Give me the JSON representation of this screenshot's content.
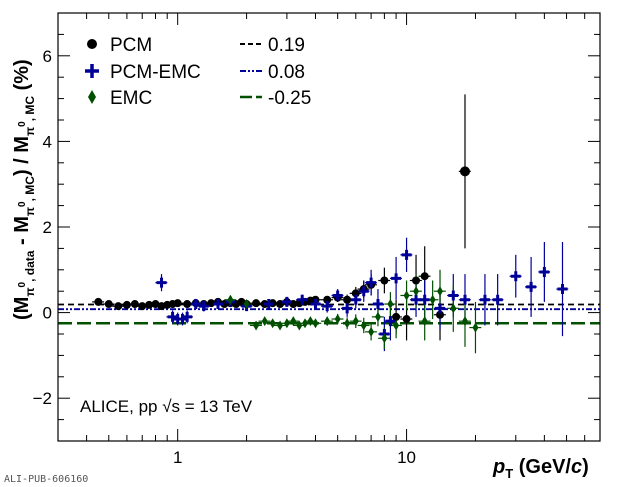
{
  "chart_data": {
    "type": "scatter",
    "x_scale": "log",
    "xlim": [
      0.3,
      70
    ],
    "ylim": [
      -3,
      7
    ],
    "y_ticks": [
      -2,
      0,
      2,
      4,
      6
    ],
    "x_tick_labels": [
      {
        "value": 1,
        "label": "1"
      },
      {
        "value": 10,
        "label": "10"
      }
    ],
    "xlabel": {
      "main": "p",
      "sub": "T",
      "rest": " (GeV/",
      "italic": "c",
      "close": ")"
    },
    "ylabel": {
      "open": "(M",
      "sub1": "π",
      "sup1": "0",
      "sub1b": ", data",
      "minus": " - M",
      "sub2": "π",
      "sup2": "0",
      "sub2b": ", MC",
      "close": ") / M",
      "sub3": "π",
      "sup3": "0",
      "sub3b": ", MC",
      "unit": " (%)"
    },
    "annotation": "ALICE, pp √s = 13 TeV",
    "publication_id": "ALI-PUB-606160",
    "legend_position": "top-left",
    "series": [
      {
        "name": "PCM",
        "color": "#000000",
        "marker": "circle",
        "points": [
          [
            0.45,
            0.25,
            0.03
          ],
          [
            0.5,
            0.2,
            0.03
          ],
          [
            0.55,
            0.15,
            0.03
          ],
          [
            0.6,
            0.18,
            0.03
          ],
          [
            0.65,
            0.2,
            0.03
          ],
          [
            0.7,
            0.15,
            0.03
          ],
          [
            0.75,
            0.18,
            0.03
          ],
          [
            0.8,
            0.2,
            0.03
          ],
          [
            0.85,
            0.15,
            0.03
          ],
          [
            0.9,
            0.18,
            0.03
          ],
          [
            0.95,
            0.2,
            0.03
          ],
          [
            1.0,
            0.22,
            0.03
          ],
          [
            1.1,
            0.2,
            0.03
          ],
          [
            1.2,
            0.22,
            0.03
          ],
          [
            1.3,
            0.2,
            0.03
          ],
          [
            1.4,
            0.22,
            0.04
          ],
          [
            1.5,
            0.25,
            0.04
          ],
          [
            1.6,
            0.2,
            0.04
          ],
          [
            1.7,
            0.22,
            0.04
          ],
          [
            1.8,
            0.2,
            0.04
          ],
          [
            1.9,
            0.25,
            0.04
          ],
          [
            2.0,
            0.2,
            0.04
          ],
          [
            2.2,
            0.22,
            0.04
          ],
          [
            2.4,
            0.2,
            0.04
          ],
          [
            2.6,
            0.22,
            0.05
          ],
          [
            2.8,
            0.2,
            0.05
          ],
          [
            3.0,
            0.25,
            0.05
          ],
          [
            3.2,
            0.2,
            0.05
          ],
          [
            3.4,
            0.22,
            0.05
          ],
          [
            3.6,
            0.25,
            0.06
          ],
          [
            3.8,
            0.28,
            0.06
          ],
          [
            4.0,
            0.3,
            0.07
          ],
          [
            4.5,
            0.3,
            0.08
          ],
          [
            5.0,
            0.35,
            0.1
          ],
          [
            5.5,
            0.3,
            0.12
          ],
          [
            6.0,
            0.45,
            0.15
          ],
          [
            6.5,
            0.55,
            0.2
          ],
          [
            7.0,
            0.65,
            0.25
          ],
          [
            8.0,
            0.75,
            0.3
          ],
          [
            9.0,
            -0.1,
            0.4
          ],
          [
            10.0,
            -0.15,
            0.5
          ],
          [
            11.0,
            0.75,
            0.6
          ],
          [
            12.0,
            0.85,
            0.7
          ],
          [
            14.0,
            -0.05,
            0.6
          ],
          [
            18.0,
            3.3,
            1.8
          ]
        ]
      },
      {
        "name": "PCM-EMC",
        "color": "#000099",
        "marker": "cross",
        "points": [
          [
            0.85,
            0.7,
            0.2
          ],
          [
            0.95,
            -0.1,
            0.15
          ],
          [
            1.0,
            -0.15,
            0.15
          ],
          [
            1.05,
            -0.15,
            0.15
          ],
          [
            1.1,
            -0.1,
            0.15
          ],
          [
            1.2,
            0.2,
            0.12
          ],
          [
            1.3,
            0.15,
            0.12
          ],
          [
            1.5,
            0.2,
            0.1
          ],
          [
            1.7,
            0.25,
            0.1
          ],
          [
            2.0,
            0.15,
            0.1
          ],
          [
            2.5,
            0.2,
            0.1
          ],
          [
            3.0,
            0.25,
            0.1
          ],
          [
            3.5,
            0.3,
            0.12
          ],
          [
            4.0,
            0.2,
            0.12
          ],
          [
            4.5,
            0.15,
            0.15
          ],
          [
            5.0,
            0.4,
            0.15
          ],
          [
            5.5,
            0.1,
            0.2
          ],
          [
            6.0,
            0.3,
            0.2
          ],
          [
            6.5,
            0.5,
            0.25
          ],
          [
            7.0,
            0.7,
            0.3
          ],
          [
            7.5,
            0.2,
            0.35
          ],
          [
            8.0,
            -0.5,
            0.4
          ],
          [
            8.5,
            -0.2,
            0.45
          ],
          [
            9.0,
            0.8,
            0.5
          ],
          [
            10.0,
            1.35,
            0.4
          ],
          [
            11.0,
            0.3,
            0.4
          ],
          [
            12.0,
            0.3,
            0.45
          ],
          [
            14.0,
            0.1,
            0.5
          ],
          [
            16.0,
            0.4,
            0.5
          ],
          [
            18.0,
            0.3,
            0.6
          ],
          [
            22.0,
            0.3,
            0.6
          ],
          [
            25.0,
            0.3,
            0.6
          ],
          [
            30.0,
            0.85,
            0.5
          ],
          [
            35.0,
            0.6,
            0.7
          ],
          [
            40.0,
            0.95,
            0.7
          ],
          [
            48.0,
            0.55,
            1.1
          ]
        ]
      },
      {
        "name": "EMC",
        "color": "#005000",
        "marker": "diamond",
        "points": [
          [
            1.7,
            0.3,
            0.1
          ],
          [
            2.0,
            0.2,
            0.08
          ],
          [
            2.2,
            -0.3,
            0.06
          ],
          [
            2.4,
            -0.2,
            0.06
          ],
          [
            2.6,
            -0.25,
            0.06
          ],
          [
            2.8,
            -0.3,
            0.06
          ],
          [
            3.0,
            -0.25,
            0.06
          ],
          [
            3.2,
            -0.2,
            0.06
          ],
          [
            3.4,
            -0.3,
            0.06
          ],
          [
            3.6,
            -0.25,
            0.07
          ],
          [
            3.8,
            -0.2,
            0.07
          ],
          [
            4.0,
            -0.25,
            0.08
          ],
          [
            4.5,
            -0.2,
            0.1
          ],
          [
            5.0,
            -0.15,
            0.12
          ],
          [
            5.5,
            -0.25,
            0.14
          ],
          [
            6.0,
            -0.2,
            0.16
          ],
          [
            6.5,
            -0.3,
            0.18
          ],
          [
            7.0,
            -0.45,
            0.2
          ],
          [
            7.5,
            -0.1,
            0.22
          ],
          [
            8.0,
            -0.6,
            0.25
          ],
          [
            8.5,
            0.2,
            0.28
          ],
          [
            9.0,
            -0.3,
            0.3
          ],
          [
            10.0,
            0.4,
            0.35
          ],
          [
            11.0,
            0.5,
            0.4
          ],
          [
            12.0,
            -0.2,
            0.45
          ],
          [
            13.0,
            0.3,
            0.45
          ],
          [
            14.0,
            0.5,
            0.5
          ],
          [
            16.0,
            0.1,
            0.55
          ],
          [
            18.0,
            -0.2,
            0.6
          ],
          [
            20.0,
            -0.35,
            0.6
          ]
        ]
      }
    ],
    "lines": [
      {
        "label": "0.19",
        "value": 0.19,
        "color": "#000000",
        "dash": "dashed"
      },
      {
        "label": "0.08",
        "value": 0.08,
        "color": "#000099",
        "dash": "dashdot"
      },
      {
        "label": "-0.25",
        "value": -0.25,
        "color": "#005000",
        "dash": "longdash"
      }
    ]
  }
}
